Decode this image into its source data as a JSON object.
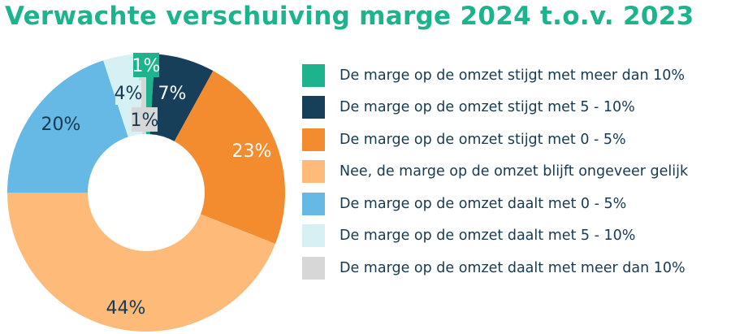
{
  "chart_data": {
    "type": "pie",
    "donut": true,
    "title": "Verwachte verschuiving marge 2024 t.o.v. 2023",
    "legend_placement": "right",
    "slices": [
      {
        "name": "De marge op de omzet stijgt met meer dan 10%",
        "value": 1,
        "label": "1%",
        "color": "#1db38d",
        "label_color": "#ffffff",
        "label_box": true
      },
      {
        "name": "De marge op de omzet stijgt met 5 - 10%",
        "value": 7,
        "label": "7%",
        "color": "#173f5a",
        "label_color": "#ffffff",
        "label_box": false
      },
      {
        "name": "De marge op de omzet stijgt met 0 - 5%",
        "value": 23,
        "label": "23%",
        "color": "#f28c2e",
        "label_color": "#ffffff",
        "label_box": false
      },
      {
        "name": "Nee, de marge op de omzet blijft ongeveer gelijk",
        "value": 44,
        "label": "44%",
        "color": "#fdba78",
        "label_color": "#163a52",
        "label_box": false
      },
      {
        "name": "De marge op de omzet daalt met 0 - 5%",
        "value": 20,
        "label": "20%",
        "color": "#66b9e5",
        "label_color": "#163a52",
        "label_box": false
      },
      {
        "name": "De marge op de omzet daalt met 5 - 10%",
        "value": 4,
        "label": "4%",
        "color": "#d6f0f3",
        "label_color": "#163a52",
        "label_box": true
      },
      {
        "name": "De marge op de omzet daalt met meer dan 10%",
        "value": 1,
        "label": "1%",
        "color": "#d7d7d7",
        "label_color": "#163a52",
        "label_box": true
      }
    ]
  }
}
